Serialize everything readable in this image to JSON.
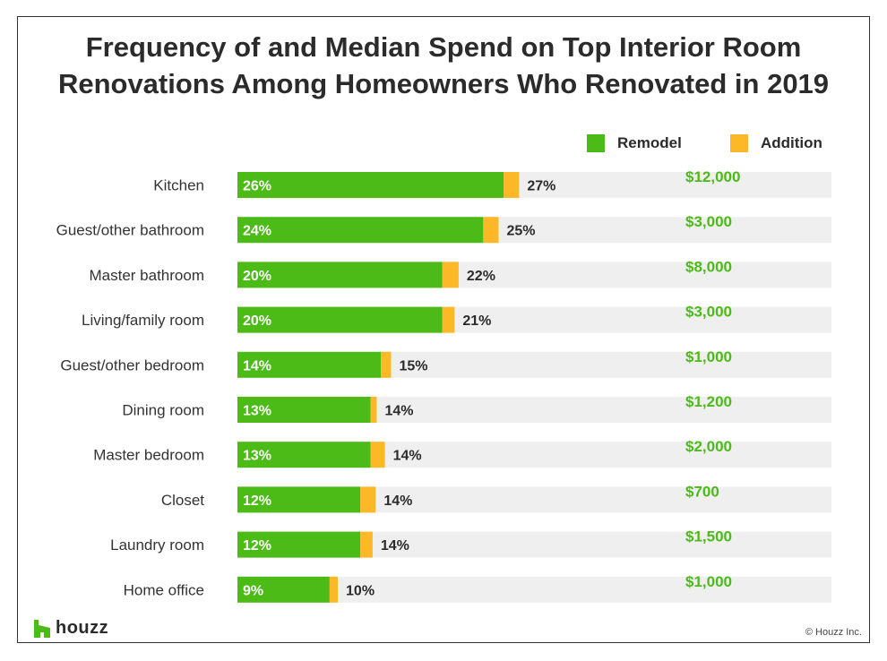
{
  "title_line1": "Frequency of and Median Spend on Top Interior Room",
  "title_line2": "Renovations Among Homeowners Who Renovated in 2019",
  "brand": "houzz",
  "copyright": "© Houzz Inc.",
  "colors": {
    "remodel": "#4cbb17",
    "addition": "#fdb827",
    "track": "#efefef",
    "spend_text": "#4cbb17",
    "text": "#2b2b2b"
  },
  "chart_data": {
    "type": "bar",
    "orientation": "horizontal",
    "stacked": true,
    "legend_position": "top-right",
    "grid": false,
    "categories": [
      "Kitchen",
      "Guest/other bathroom",
      "Master bathroom",
      "Living/family room",
      "Guest/other bedroom",
      "Dining room",
      "Master bedroom",
      "Closet",
      "Laundry room",
      "Home office"
    ],
    "series": [
      {
        "name": "Remodel",
        "values": [
          26,
          24,
          20,
          20,
          14,
          13,
          13,
          12,
          12,
          9
        ]
      },
      {
        "name": "Addition",
        "values": [
          1.5,
          1.5,
          1.6,
          1.2,
          1,
          0.6,
          1.4,
          1.5,
          1.2,
          0.8
        ]
      }
    ],
    "remodel_labels": [
      "26%",
      "24%",
      "20%",
      "20%",
      "14%",
      "13%",
      "13%",
      "12%",
      "12%",
      "9%"
    ],
    "total_labels": [
      "27%",
      "25%",
      "22%",
      "21%",
      "15%",
      "14%",
      "14%",
      "14%",
      "14%",
      "10%"
    ],
    "median_spend": [
      "$12,000",
      "$3,000",
      "$8,000",
      "$3,000",
      "$1,000",
      "$1,200",
      "$2,000",
      "$700",
      "$1,500",
      "$1,000"
    ],
    "xlim": [
      0,
      58
    ]
  }
}
